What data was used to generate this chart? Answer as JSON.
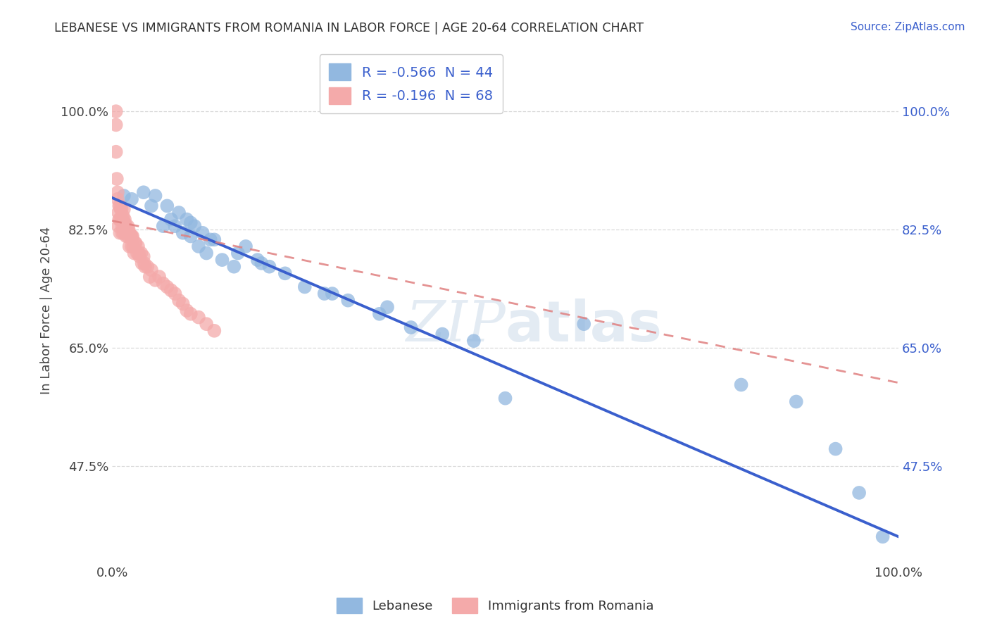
{
  "title": "LEBANESE VS IMMIGRANTS FROM ROMANIA IN LABOR FORCE | AGE 20-64 CORRELATION CHART",
  "source": "Source: ZipAtlas.com",
  "ylabel": "In Labor Force | Age 20-64",
  "xlim": [
    0.0,
    1.0
  ],
  "ylim": [
    0.33,
    1.08
  ],
  "xtick_positions": [
    0.0,
    1.0
  ],
  "xtick_labels": [
    "0.0%",
    "100.0%"
  ],
  "ytick_values": [
    0.475,
    0.65,
    0.825,
    1.0
  ],
  "ytick_labels": [
    "47.5%",
    "65.0%",
    "82.5%",
    "100.0%"
  ],
  "legend_r1": "R = -0.566  N = 44",
  "legend_r2": "R = -0.196  N = 68",
  "color_blue": "#92b8e0",
  "color_pink": "#f4aaaa",
  "trend_blue": "#3a5fcd",
  "trend_pink": "#e08080",
  "blue_scatter_x": [
    0.015,
    0.025,
    0.04,
    0.05,
    0.055,
    0.065,
    0.07,
    0.075,
    0.08,
    0.085,
    0.09,
    0.095,
    0.1,
    0.105,
    0.11,
    0.115,
    0.12,
    0.125,
    0.14,
    0.155,
    0.17,
    0.185,
    0.2,
    0.22,
    0.245,
    0.27,
    0.3,
    0.34,
    0.38,
    0.42,
    0.46,
    0.5,
    0.6,
    0.8,
    0.87,
    0.92,
    0.95,
    0.98,
    0.1,
    0.13,
    0.16,
    0.19,
    0.28,
    0.35
  ],
  "blue_scatter_y": [
    0.875,
    0.87,
    0.88,
    0.86,
    0.875,
    0.83,
    0.86,
    0.84,
    0.83,
    0.85,
    0.82,
    0.84,
    0.815,
    0.83,
    0.8,
    0.82,
    0.79,
    0.81,
    0.78,
    0.77,
    0.8,
    0.78,
    0.77,
    0.76,
    0.74,
    0.73,
    0.72,
    0.7,
    0.68,
    0.67,
    0.66,
    0.575,
    0.685,
    0.595,
    0.57,
    0.5,
    0.435,
    0.37,
    0.835,
    0.81,
    0.79,
    0.775,
    0.73,
    0.71
  ],
  "pink_scatter_x": [
    0.005,
    0.005,
    0.007,
    0.008,
    0.008,
    0.009,
    0.01,
    0.01,
    0.01,
    0.012,
    0.012,
    0.013,
    0.013,
    0.014,
    0.015,
    0.015,
    0.015,
    0.016,
    0.017,
    0.018,
    0.018,
    0.019,
    0.02,
    0.02,
    0.022,
    0.022,
    0.023,
    0.025,
    0.025,
    0.026,
    0.027,
    0.028,
    0.03,
    0.032,
    0.033,
    0.035,
    0.037,
    0.038,
    0.04,
    0.042,
    0.045,
    0.048,
    0.05,
    0.055,
    0.06,
    0.065,
    0.07,
    0.075,
    0.08,
    0.085,
    0.09,
    0.095,
    0.1,
    0.11,
    0.12,
    0.13,
    0.005,
    0.006,
    0.007,
    0.009,
    0.011,
    0.014,
    0.016,
    0.021,
    0.024,
    0.029,
    0.034,
    0.041
  ],
  "pink_scatter_y": [
    1.0,
    0.94,
    0.87,
    0.85,
    0.83,
    0.84,
    0.86,
    0.84,
    0.82,
    0.855,
    0.84,
    0.83,
    0.82,
    0.84,
    0.855,
    0.83,
    0.82,
    0.84,
    0.825,
    0.83,
    0.815,
    0.82,
    0.83,
    0.815,
    0.82,
    0.8,
    0.815,
    0.815,
    0.8,
    0.815,
    0.8,
    0.79,
    0.805,
    0.79,
    0.8,
    0.785,
    0.79,
    0.775,
    0.785,
    0.77,
    0.77,
    0.755,
    0.765,
    0.75,
    0.755,
    0.745,
    0.74,
    0.735,
    0.73,
    0.72,
    0.715,
    0.705,
    0.7,
    0.695,
    0.685,
    0.675,
    0.98,
    0.9,
    0.88,
    0.86,
    0.855,
    0.845,
    0.835,
    0.825,
    0.815,
    0.805,
    0.79,
    0.775
  ],
  "blue_trend_x": [
    0.0,
    1.0
  ],
  "blue_trend_y": [
    0.872,
    0.37
  ],
  "pink_trend_x": [
    0.0,
    1.0
  ],
  "pink_trend_y": [
    0.838,
    0.598
  ],
  "background_color": "#ffffff",
  "grid_color": "#d0d0d0",
  "watermark_color": "#c8d8e8"
}
